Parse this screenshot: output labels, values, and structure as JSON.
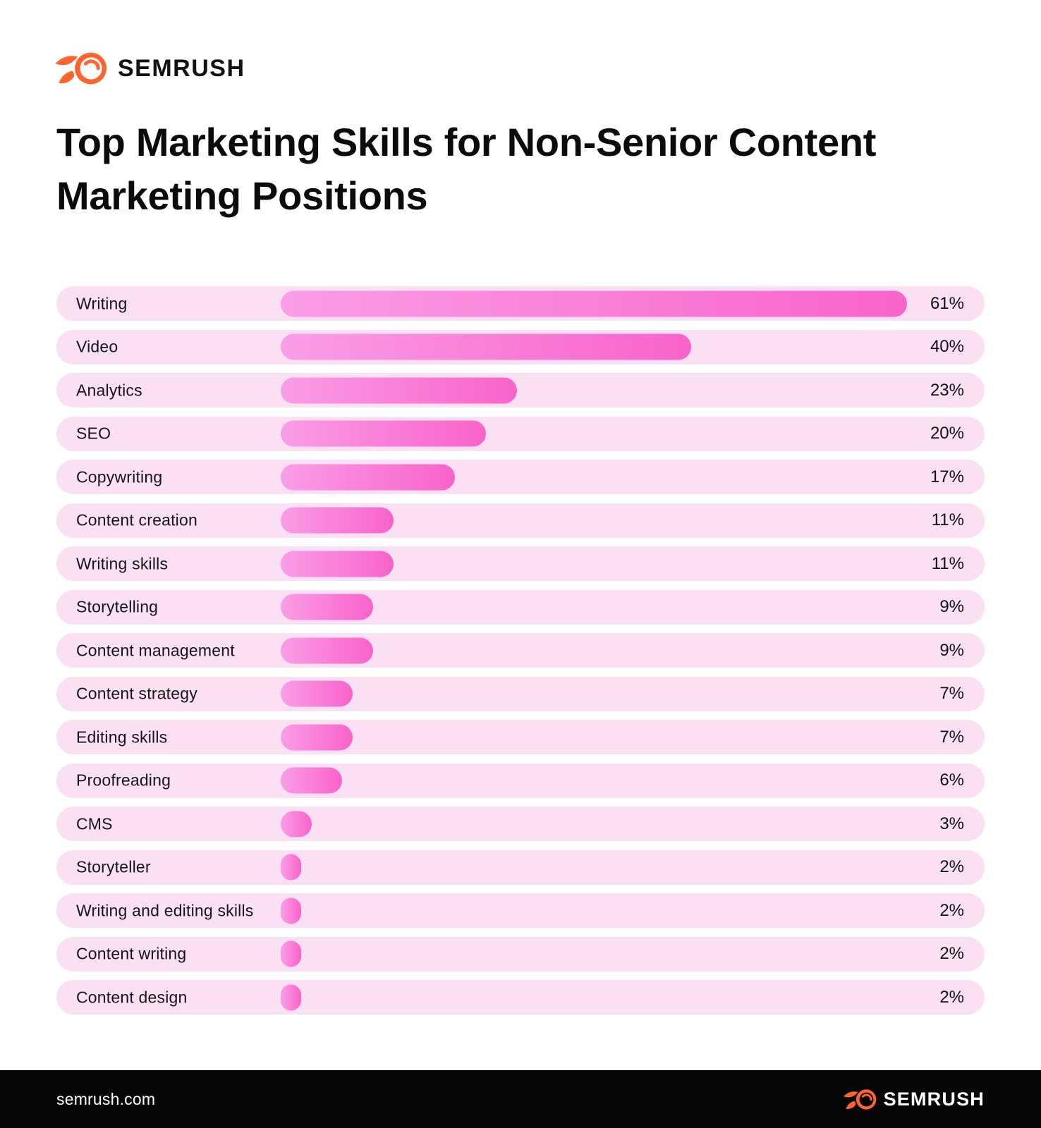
{
  "header": {
    "brand": "SEMRUSH"
  },
  "title": "Top Marketing Skills for Non-Senior Content Marketing Positions",
  "chart_data": {
    "type": "bar",
    "orientation": "horizontal",
    "title": "Top Marketing Skills for Non-Senior Content Marketing Positions",
    "unit": "%",
    "categories": [
      "Writing",
      "Video",
      "Analytics",
      "SEO",
      "Copywriting",
      "Content creation",
      "Writing skills",
      "Storytelling",
      "Content management",
      "Content strategy",
      "Editing skills",
      "Proofreading",
      "CMS",
      "Storyteller",
      "Writing and editing skills",
      "Content writing",
      "Content design"
    ],
    "values": [
      61,
      40,
      23,
      20,
      17,
      11,
      11,
      9,
      9,
      7,
      7,
      6,
      3,
      2,
      2,
      2,
      2
    ],
    "value_labels": [
      "61%",
      "40%",
      "23%",
      "20%",
      "17%",
      "11%",
      "11%",
      "9%",
      "9%",
      "7%",
      "7%",
      "6%",
      "3%",
      "2%",
      "2%",
      "2%",
      "2%"
    ],
    "xlim": [
      0,
      68
    ],
    "grid": false,
    "legend": false
  },
  "colors": {
    "row_bg": "#fbdff2",
    "bar_gradient_start": "#fa9de7",
    "bar_gradient_end": "#f963ca",
    "accent_orange": "#ff642d",
    "footer_bg": "#060606",
    "title_color": "#0b0b0b"
  },
  "footer": {
    "site": "semrush.com",
    "brand": "SEMRUSH"
  }
}
